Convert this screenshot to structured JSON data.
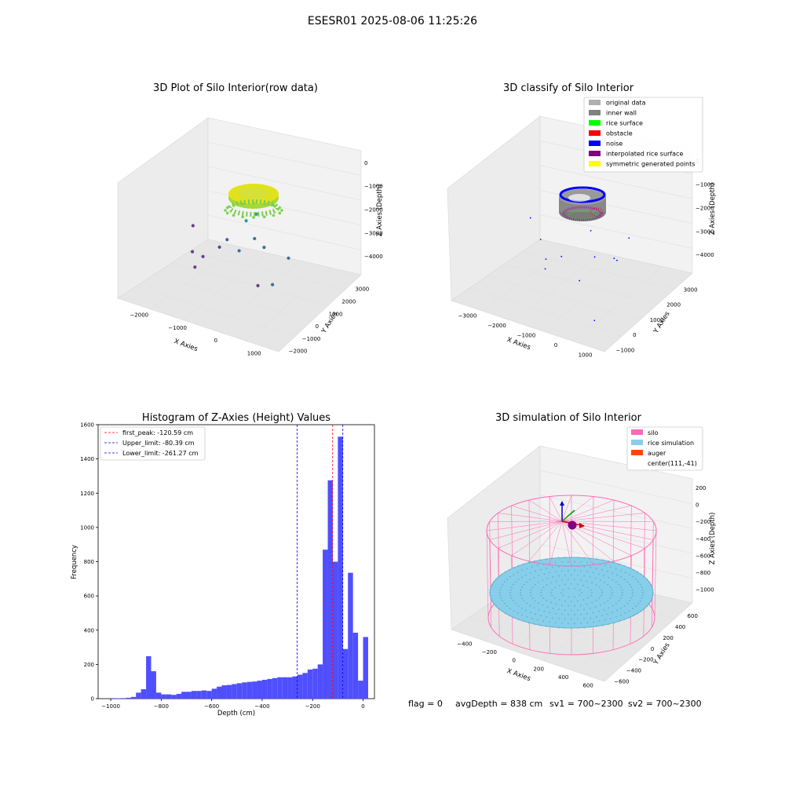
{
  "suptitle": "ESESR01 2025-08-06 11:25:26",
  "footer": {
    "flag": "flag = 0",
    "avg_depth": "avgDepth = 838 cm",
    "sv1": "sv1 = 700~2300",
    "sv2": "sv2 = 700~2300"
  },
  "colors": {
    "histogram_bar": "#4f4fff",
    "first_peak_line": "#ff0000",
    "limit_lines": "#0000ff",
    "original_data": "#b0b0b0",
    "inner_wall": "#808080",
    "rice_surface": "#00ff00",
    "obstacle": "#ff0000",
    "noise": "#0000ff",
    "interpolated_rice_surface": "#800080",
    "symmetric_generated_points": "#ffff00",
    "silo": "#ff69b4",
    "rice_simulation": "#87ceeb",
    "auger": "#ff4500"
  },
  "chart_data": [
    {
      "type": "scatter",
      "title": "3D Plot of Silo Interior(row data)",
      "xlabel": "X Axies",
      "ylabel": "Y Axies",
      "zlabel": "Z Axies (Depth)",
      "x_ticks": [
        "−2000",
        "−1000",
        "0",
        "1000"
      ],
      "y_ticks": [
        "−2000",
        "−1000",
        "0",
        "1000",
        "2000",
        "3000"
      ],
      "z_ticks": [
        "0",
        "−1000",
        "−2000",
        "−3000",
        "−4000"
      ],
      "xlim": [
        -2600,
        1700
      ],
      "ylim": [
        -2000,
        3300
      ],
      "zlim": [
        -4400,
        300
      ],
      "scattered_points": [
        {
          "x": -2450,
          "y": 2100,
          "z": -3300
        },
        {
          "x": -2000,
          "y": 1100,
          "z": -3700
        },
        {
          "x": -1800,
          "y": 1300,
          "z": -3900
        },
        {
          "x": -1700,
          "y": 600,
          "z": -3950
        },
        {
          "x": -1300,
          "y": 1200,
          "z": -3300
        },
        {
          "x": -1000,
          "y": 1000,
          "z": -2800
        },
        {
          "x": 200,
          "y": 200,
          "z": -3700
        },
        {
          "x": 600,
          "y": 1200,
          "z": -3000
        },
        {
          "x": 900,
          "y": -500,
          "z": -3000
        },
        {
          "x": -700,
          "y": 1500,
          "z": -2200
        },
        {
          "x": -200,
          "y": 900,
          "z": -2400
        },
        {
          "x": 150,
          "y": 700,
          "z": -2500
        },
        {
          "x": -400,
          "y": 400,
          "z": -2700
        },
        {
          "x": -600,
          "y": 1900,
          "z": -2100
        }
      ]
    },
    {
      "type": "scatter",
      "title": "3D classify of Silo Interior",
      "xlabel": "X Axies",
      "ylabel": "Y Axies",
      "zlabel": "Z Axies (Depth)",
      "x_ticks": [
        "−3000",
        "−2000",
        "−1000",
        "0",
        "1000"
      ],
      "y_ticks": [
        "−1000",
        "0",
        "1000",
        "2000",
        "3000"
      ],
      "z_ticks": [
        "0",
        "−1000",
        "−2000",
        "−3000",
        "−4000"
      ],
      "xlim": [
        -3100,
        1700
      ],
      "ylim": [
        -1700,
        3300
      ],
      "zlim": [
        -4400,
        300
      ],
      "legend": [
        {
          "label": "original data",
          "color": "#b0b0b0"
        },
        {
          "label": "inner wall",
          "color": "#808080"
        },
        {
          "label": "rice surface",
          "color": "#00ff00"
        },
        {
          "label": "obstacle",
          "color": "#ff0000"
        },
        {
          "label": "noise",
          "color": "#0000ff"
        },
        {
          "label": "interpolated rice surface",
          "color": "#800080"
        },
        {
          "label": "symmetric generated points",
          "color": "#ffff00"
        }
      ],
      "noise_points": [
        {
          "x": -2900,
          "y": 2400,
          "z": -3100
        },
        {
          "x": -2300,
          "y": 1900,
          "z": -3500
        },
        {
          "x": -1800,
          "y": 1300,
          "z": -3800
        },
        {
          "x": -1600,
          "y": 900,
          "z": -3900
        },
        {
          "x": -1200,
          "y": 1100,
          "z": -3400
        },
        {
          "x": -300,
          "y": 500,
          "z": -3700
        },
        {
          "x": 1000,
          "y": -1000,
          "z": -3900
        },
        {
          "x": 400,
          "y": 1200,
          "z": -3000
        },
        {
          "x": 600,
          "y": 1000,
          "z": -2900
        },
        {
          "x": -100,
          "y": 1000,
          "z": -3000
        },
        {
          "x": -500,
          "y": 1500,
          "z": -2400
        },
        {
          "x": 700,
          "y": 1500,
          "z": -2300
        }
      ]
    },
    {
      "type": "bar",
      "title": "Histogram of Z-Axies (Height) Values",
      "xlabel": "Depth (cm)",
      "ylabel": "Frequency",
      "xlim": [
        -1050,
        45
      ],
      "ylim": [
        0,
        1600
      ],
      "x_ticks": [
        -1000,
        -800,
        -600,
        -400,
        -200,
        0
      ],
      "y_ticks": [
        0,
        200,
        400,
        600,
        800,
        1000,
        1200,
        1400,
        1600
      ],
      "bin_width": 20.0,
      "bin_start": -1000,
      "counts": [
        3,
        2,
        3,
        5,
        10,
        35,
        55,
        248,
        160,
        35,
        25,
        25,
        22,
        28,
        40,
        40,
        45,
        45,
        48,
        45,
        58,
        70,
        78,
        80,
        85,
        90,
        95,
        98,
        100,
        105,
        110,
        115,
        120,
        125,
        125,
        125,
        130,
        140,
        150,
        170,
        175,
        200,
        870,
        1275,
        800,
        1530,
        290,
        735,
        385,
        105,
        360
      ],
      "vlines": [
        {
          "label": "first_peak: -120.59 cm",
          "x": -120.59,
          "color": "#ff0000"
        },
        {
          "label": "Upper_limit: -80.39 cm",
          "x": -80.39,
          "color": "#0000ff"
        },
        {
          "label": "Lower_limit: -261.27 cm",
          "x": -261.27,
          "color": "#0000ff"
        }
      ]
    },
    {
      "type": "scatter",
      "title": "3D simulation of Silo Interior",
      "xlabel": "X Axies",
      "ylabel": "Y Axies",
      "zlabel": "Z Axies (Depth)",
      "x_ticks": [
        "−400",
        "−200",
        "0",
        "200",
        "400",
        "600"
      ],
      "y_ticks": [
        "−600",
        "−400",
        "−200",
        "0",
        "200",
        "400",
        "600"
      ],
      "z_ticks": [
        "200",
        "0",
        "−200",
        "−400",
        "−600",
        "−800",
        "−1000"
      ],
      "xlim": [
        -500,
        700
      ],
      "ylim": [
        -700,
        700
      ],
      "zlim": [
        -1100,
        300
      ],
      "legend": [
        {
          "label": "silo",
          "color": "#ff69b4"
        },
        {
          "label": "rice simulation",
          "color": "#87ceeb"
        },
        {
          "label": "auger",
          "color": "#ff4500"
        },
        {
          "label": "center(111,-41)",
          "color": ""
        }
      ]
    }
  ]
}
